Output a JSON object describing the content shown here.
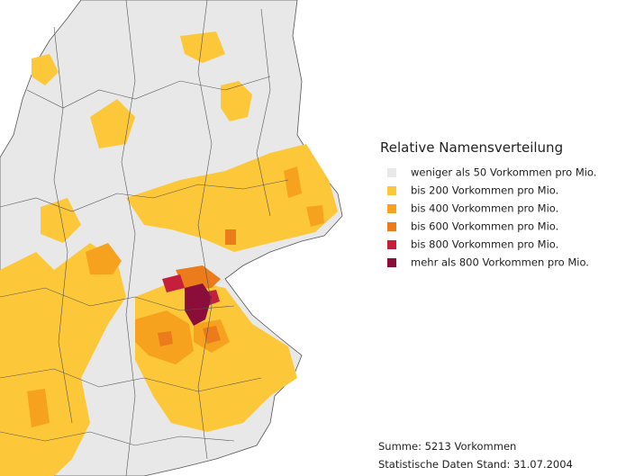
{
  "legend": {
    "title": "Relative Namensverteilung",
    "items": [
      {
        "label": "weniger als 50 Vorkommen pro Mio.",
        "color": "#e8e8e8"
      },
      {
        "label": "bis 200 Vorkommen pro Mio.",
        "color": "#fdc73a"
      },
      {
        "label": "bis 400 Vorkommen pro Mio.",
        "color": "#f6a21f"
      },
      {
        "label": "bis 600 Vorkommen pro Mio.",
        "color": "#ec7b1c"
      },
      {
        "label": "bis 800 Vorkommen pro Mio.",
        "color": "#c41f3c"
      },
      {
        "label": "mehr als 800 Vorkommen pro Mio.",
        "color": "#8a0d3a"
      }
    ]
  },
  "footer": {
    "sum": "Summe: 5213 Vorkommen",
    "date": "Statistische Daten Stand: 31.07.2004"
  }
}
